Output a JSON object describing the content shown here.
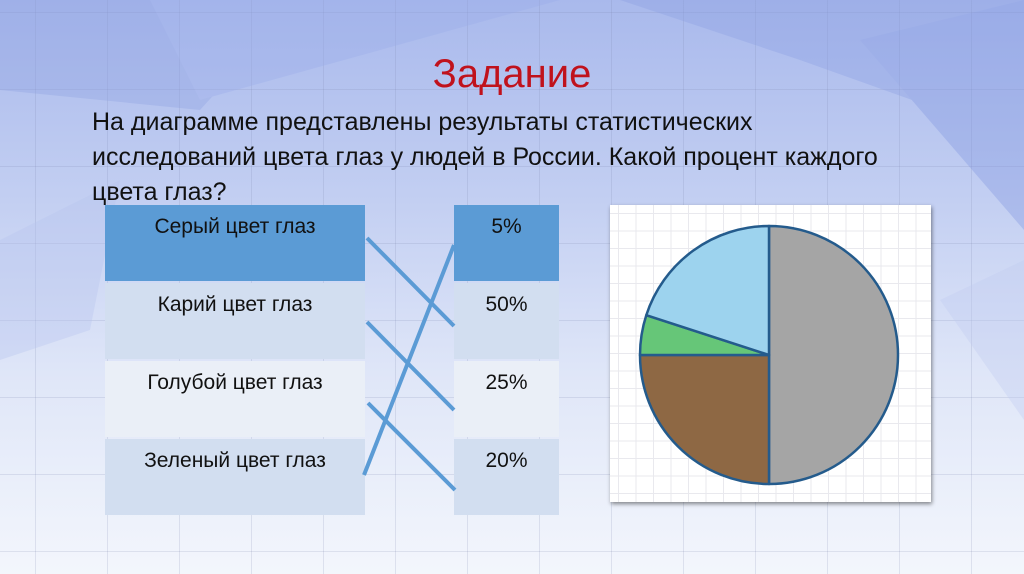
{
  "slide": {
    "title": "Задание",
    "question": "На диаграмме представлены результаты статистических исследований цвета глаз у людей в России. Какой процент каждого цвета глаз?"
  },
  "matching": {
    "left_items": [
      "Серый цвет глаз",
      "Карий цвет глаз",
      "Голубой цвет глаз",
      "Зеленый цвет глаз"
    ],
    "right_items": [
      "5%",
      "50%",
      "25%",
      "20%"
    ],
    "connections": [
      {
        "from": "Серый цвет глаз",
        "to": "50%"
      },
      {
        "from": "Карий цвет глаз",
        "to": "25%"
      },
      {
        "from": "Голубой цвет глаз",
        "to": "20%"
      },
      {
        "from": "Зеленый цвет глаз",
        "to": "5%"
      }
    ],
    "line_color": "#5b9bd5"
  },
  "chart_data": {
    "type": "pie",
    "title": "",
    "categories": [
      "Серый",
      "Карий",
      "Зеленый",
      "Голубой"
    ],
    "values": [
      50,
      25,
      5,
      20
    ],
    "colors": [
      "#a5a5a5",
      "#8e6844",
      "#66c678",
      "#9dd3ee"
    ],
    "outline_color": "#245b8c",
    "start_angle_deg": 0,
    "direction": "clockwise",
    "legend": "none",
    "grid": true
  }
}
